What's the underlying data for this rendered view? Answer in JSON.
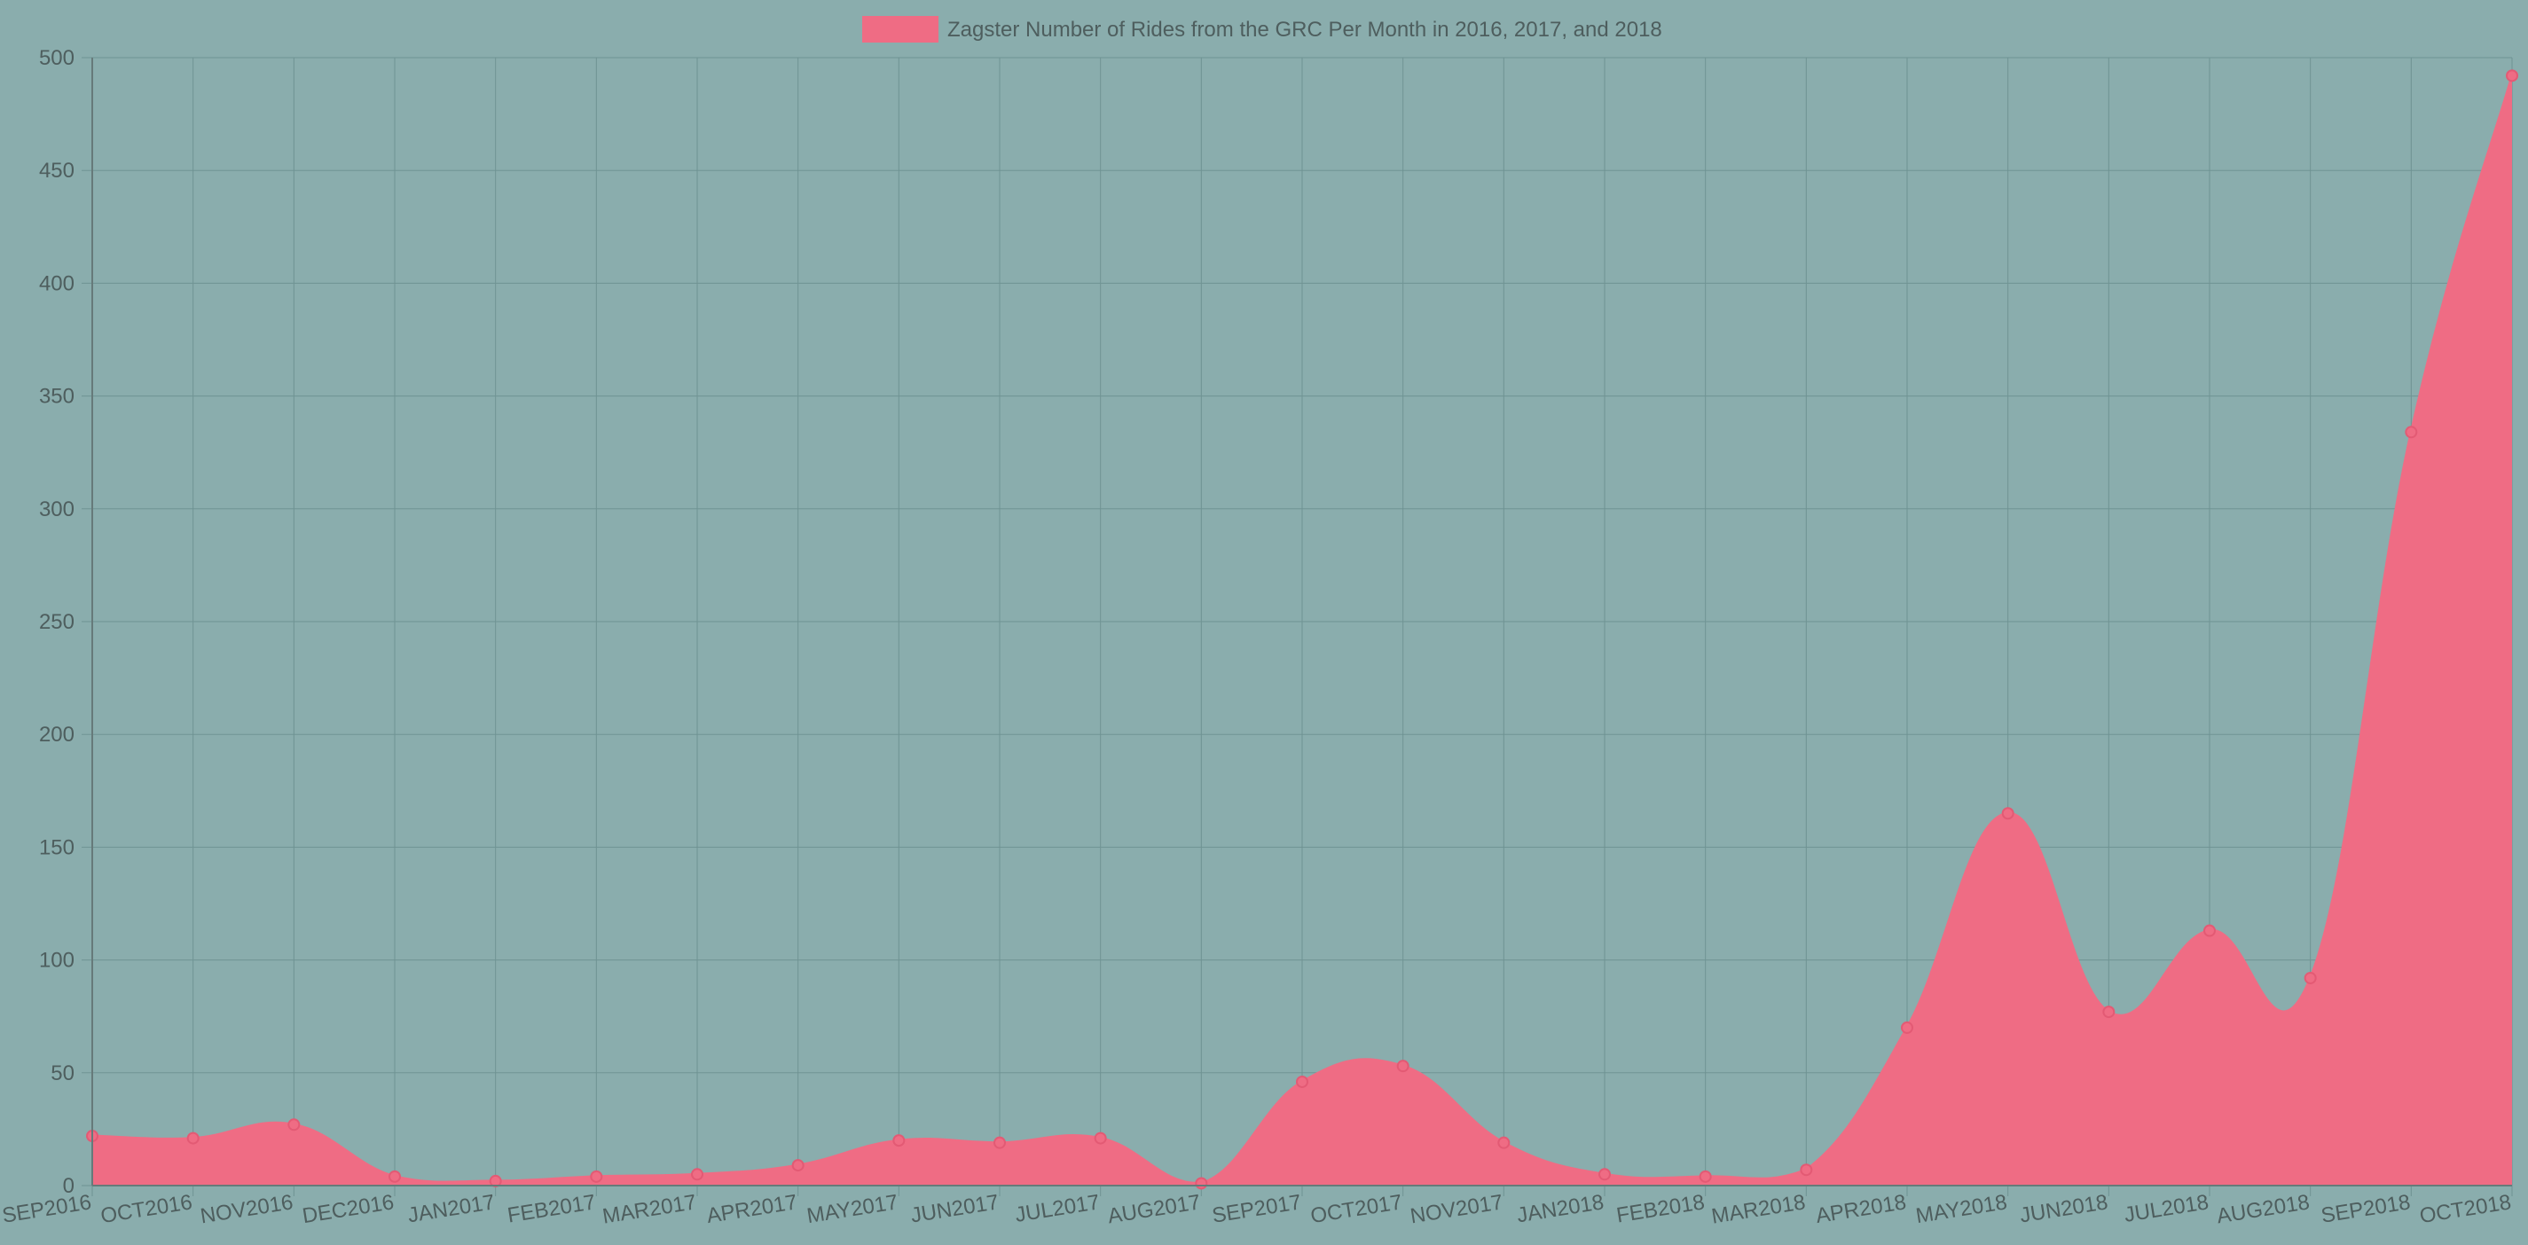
{
  "chart_data": {
    "type": "area",
    "legend": {
      "position": "top",
      "entries": [
        {
          "label": "Zagster Number of Rides from the GRC Per Month in 2016, 2017, and 2018",
          "color": "#ef6c84"
        }
      ]
    },
    "categories": [
      "SEP2016",
      "OCT2016",
      "NOV2016",
      "DEC2016",
      "JAN2017",
      "FEB2017",
      "MAR2017",
      "APR2017",
      "MAY2017",
      "JUN2017",
      "JUL2017",
      "AUG2017",
      "SEP2017",
      "OCT2017",
      "NOV2017",
      "JAN2018",
      "FEB2018",
      "MAR2018",
      "APR2018",
      "MAY2018",
      "JUN2018",
      "JUL2018",
      "AUG2018",
      "SEP2018",
      "OCT2018"
    ],
    "series": [
      {
        "name": "Zagster Number of Rides from the GRC Per Month in 2016, 2017, and 2018",
        "color": "#ef6c84",
        "values": [
          22,
          21,
          27,
          4,
          2,
          4,
          5,
          9,
          20,
          19,
          21,
          1,
          46,
          53,
          19,
          5,
          4,
          7,
          70,
          165,
          77,
          113,
          92,
          334,
          492
        ]
      }
    ],
    "xlabel": "",
    "ylabel": "",
    "ylim": [
      0,
      500
    ],
    "yticks": [
      "0",
      "50",
      "100",
      "150",
      "200",
      "250",
      "300",
      "350",
      "400",
      "450",
      "500"
    ],
    "grid": true,
    "colors": {
      "background": "#8aadad",
      "grid": "#6f9393",
      "axis": "#667a7a",
      "text": "#4e5e5e",
      "area": "#ef6c84"
    }
  }
}
